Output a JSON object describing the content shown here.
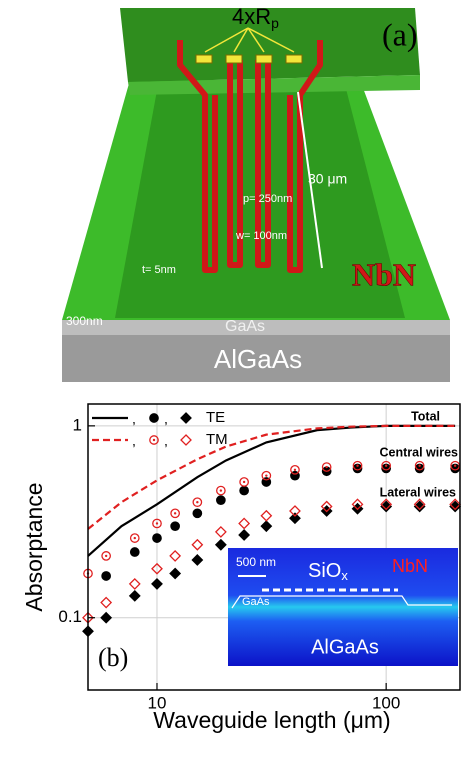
{
  "panel_a": {
    "panel_label": "(a)",
    "resistor_label": "4xR",
    "resistor_subscript": "p",
    "length_label": "30 μm",
    "pitch_label": "p= 250nm",
    "width_label": "w= 100nm",
    "thickness_label": "t= 5nm",
    "wire_material": "NbN",
    "layer_thickness_label": "300nm",
    "waveguide_material": "GaAs",
    "substrate_material": "AlGaAs"
  },
  "chart_data": {
    "type": "scatter",
    "panel_label": "(b)",
    "x_label": "Waveguide length (μm)",
    "y_label": "Absorptance",
    "xscale": "log",
    "yscale": "log",
    "xlim": [
      5,
      210
    ],
    "ylim": [
      0.042,
      1.3
    ],
    "xticks": [
      10,
      100
    ],
    "yticks": [
      0.1,
      1
    ],
    "grid": true,
    "legend_separator": ",",
    "series": [
      {
        "name": "TE",
        "group": "Total",
        "color": "#000000",
        "marker": "line",
        "dashed": false,
        "filled": true,
        "x": [
          5,
          7,
          10,
          15,
          20,
          30,
          50,
          70,
          100,
          150,
          200
        ],
        "values": [
          0.21,
          0.3,
          0.39,
          0.54,
          0.66,
          0.82,
          0.95,
          0.98,
          1.0,
          1.0,
          1.0
        ]
      },
      {
        "name": "TM",
        "group": "Total",
        "color": "#e02020",
        "marker": "line",
        "dashed": true,
        "filled": false,
        "x": [
          5,
          7,
          10,
          15,
          20,
          30,
          50,
          70,
          100,
          150,
          200
        ],
        "values": [
          0.29,
          0.4,
          0.52,
          0.67,
          0.78,
          0.9,
          0.97,
          0.99,
          1.0,
          1.0,
          1.0
        ]
      },
      {
        "name": "TE",
        "group": "Central wires",
        "color": "#000000",
        "marker": "circle",
        "dashed": false,
        "filled": true,
        "x": [
          6,
          8,
          10,
          12,
          15,
          19,
          24,
          30,
          40,
          55,
          75,
          100,
          140,
          200
        ],
        "values": [
          0.165,
          0.22,
          0.26,
          0.3,
          0.35,
          0.41,
          0.46,
          0.51,
          0.55,
          0.58,
          0.6,
          0.6,
          0.6,
          0.6
        ]
      },
      {
        "name": "TM",
        "group": "Central wires",
        "color": "#e02020",
        "marker": "circle",
        "dashed": false,
        "filled": false,
        "x": [
          5,
          6,
          8,
          10,
          12,
          15,
          19,
          24,
          30,
          40,
          55,
          75,
          100,
          140,
          200
        ],
        "values": [
          0.17,
          0.21,
          0.26,
          0.31,
          0.35,
          0.4,
          0.46,
          0.51,
          0.55,
          0.59,
          0.61,
          0.62,
          0.62,
          0.62,
          0.62
        ]
      },
      {
        "name": "TE",
        "group": "Lateral wires",
        "color": "#000000",
        "marker": "diamond",
        "dashed": false,
        "filled": true,
        "x": [
          5,
          6,
          8,
          10,
          12,
          15,
          19,
          24,
          30,
          40,
          55,
          75,
          100,
          140,
          200
        ],
        "values": [
          0.085,
          0.1,
          0.13,
          0.15,
          0.17,
          0.2,
          0.24,
          0.27,
          0.3,
          0.33,
          0.36,
          0.37,
          0.38,
          0.38,
          0.38
        ]
      },
      {
        "name": "TM",
        "group": "Lateral wires",
        "color": "#e02020",
        "marker": "diamond",
        "dashed": false,
        "filled": false,
        "x": [
          5,
          6,
          8,
          10,
          12,
          15,
          19,
          24,
          30,
          40,
          55,
          75,
          100,
          140,
          200
        ],
        "values": [
          0.1,
          0.12,
          0.15,
          0.18,
          0.21,
          0.24,
          0.28,
          0.31,
          0.34,
          0.36,
          0.38,
          0.39,
          0.39,
          0.39,
          0.39
        ]
      }
    ],
    "inset": {
      "scale_bar": "500 nm",
      "cladding": "SiO",
      "cladding_subscript": "x",
      "wire_material": "NbN",
      "core_material": "GaAs",
      "substrate_material": "AlGaAs"
    }
  }
}
